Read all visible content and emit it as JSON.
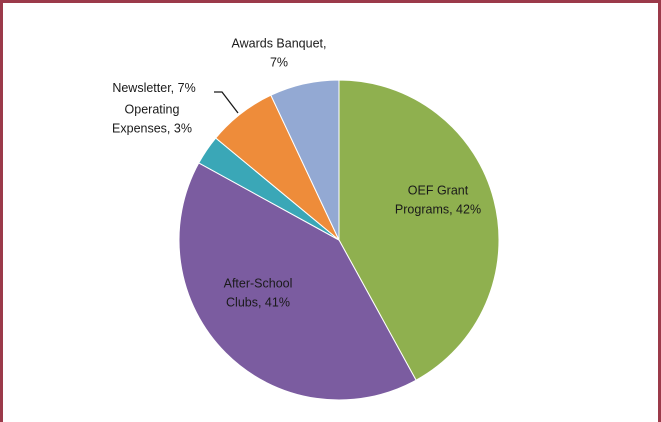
{
  "chart_data": {
    "type": "pie",
    "title": "",
    "slices": [
      {
        "label": "OEF Grant Programs",
        "value": 42,
        "color": "#8fb04f",
        "label_lines": [
          "OEF Grant",
          "Programs, 42%"
        ]
      },
      {
        "label": "After-School Clubs",
        "value": 41,
        "color": "#7b5ca0",
        "label_lines": [
          "After-School",
          "Clubs, 41%"
        ]
      },
      {
        "label": "Operating Expenses",
        "value": 3,
        "color": "#3aa7b7",
        "label_lines": [
          "Operating",
          "Expenses, 3%"
        ]
      },
      {
        "label": "Newsletter",
        "value": 7,
        "color": "#ee8c3a",
        "label_lines": [
          "Newsletter, 7%"
        ]
      },
      {
        "label": "Awards Banquet",
        "value": 7,
        "color": "#93a9d3",
        "label_lines": [
          "Awards Banquet,",
          "7%"
        ]
      }
    ],
    "start_angle_deg": 0,
    "direction": "clockwise"
  }
}
